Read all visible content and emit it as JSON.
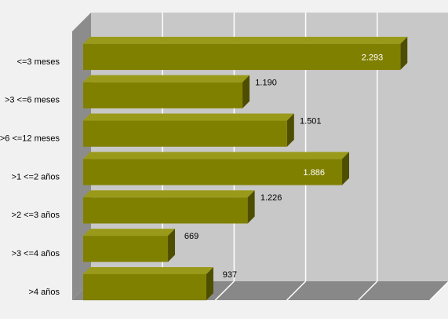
{
  "chart_data": {
    "type": "bar",
    "orientation": "horizontal",
    "style": "3d",
    "categories": [
      "<=3 meses",
      ">3 <=6 meses",
      ">6 <=12 meses",
      ">1 <=2 años",
      ">2 <=3 años",
      ">3 <=4 años",
      ">4 años"
    ],
    "values": [
      2293,
      1190,
      1501,
      1886,
      1226,
      669,
      937
    ],
    "value_labels": [
      "2.293",
      "1.190",
      "1.501",
      "1.886",
      "1.226",
      "669",
      "937"
    ],
    "xlim": [
      0,
      2500
    ],
    "grid": true,
    "legend": "none",
    "title": "",
    "xlabel": "",
    "ylabel": "",
    "colors": {
      "bar_front": "#808000",
      "bar_top": "#9a9a1a",
      "bar_side": "#4e4e00",
      "back_wall": "#c8c8c8",
      "left_wall": "#8c8c8c",
      "floor": "#888888",
      "grid_line": "#ffffff"
    }
  }
}
